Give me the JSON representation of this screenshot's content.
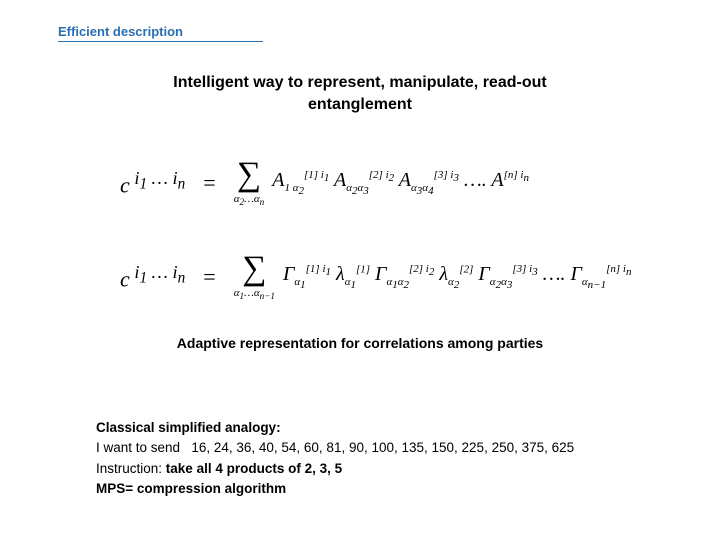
{
  "header": {
    "label": "Efficient description"
  },
  "headline": {
    "line1": "Intelligent way to represent, manipulate, read-out",
    "line2": "entanglement"
  },
  "equations": {
    "eq1": {
      "lhs_html": "c<sup> i<sub>1</sub> … i<sub>n</sub></sup>",
      "sum_sub": "α<sub>2</sub>…α<sub>n</sub>",
      "rhs_html": "A<sub>1 α<sub>2</sub></sub><sup>[1] i<sub>1</sub></sup> A<sub>α<sub>2</sub>α<sub>3</sub></sub><sup>[2] i<sub>2</sub></sup> A<sub>α<sub>3</sub>α<sub>4</sub></sub><sup>[3] i<sub>3</sub></sup> …. A<sup>[n] i<sub>n</sub></sup>"
    },
    "eq2": {
      "lhs_html": "c<sup> i<sub>1</sub> … i<sub>n</sub></sup>",
      "sum_sub": "α<sub>1</sub>…α<sub>n−1</sub>",
      "rhs_html": "Γ<sub>α<sub>1</sub></sub><sup>[1] i<sub>1</sub></sup> λ<sub>α<sub>1</sub></sub><sup>[1]</sup> Γ<sub>α<sub>1</sub>α<sub>2</sub></sub><sup>[2] i<sub>2</sub></sup> λ<sub>α<sub>2</sub></sub><sup>[2]</sup> Γ<sub>α<sub>2</sub>α<sub>3</sub></sub><sup>[3] i<sub>3</sub></sup> …. Γ<sub>α<sub>n−1</sub></sub><sup>[n] i<sub>n</sub></sup>"
    }
  },
  "caption": "Adaptive representation for correlations among parties",
  "analogy": {
    "title": "Classical simplified analogy:",
    "line_send_prefix": "I want to send",
    "numbers": "16, 24, 36, 40, 54, 60, 81, 90, 100, 135, 150, 225, 250, 375, 625",
    "instruction_prefix": "Instruction:",
    "instruction_body": "take all 4 products of  2, 3, 5",
    "mps_line": "MPS= compression algorithm"
  },
  "style": {
    "accent_color": "#2a6fb3",
    "text_color": "#000000",
    "background": "#ffffff",
    "base_font_size": 13.5,
    "headline_font_size": 16,
    "caption_font_size": 14
  }
}
